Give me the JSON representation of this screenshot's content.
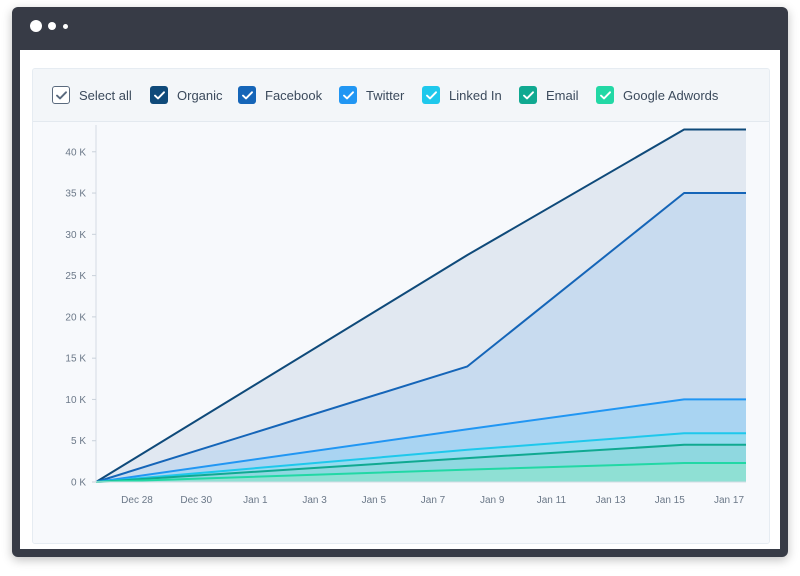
{
  "filters": [
    {
      "label": "Select all",
      "color": "#ffffff",
      "style": "outline",
      "checked": true
    },
    {
      "label": "Organic",
      "color": "#0f4a7a",
      "checked": true
    },
    {
      "label": "Facebook",
      "color": "#1565b8",
      "checked": true
    },
    {
      "label": "Twitter",
      "color": "#2196f3",
      "checked": true
    },
    {
      "label": "Linked In",
      "color": "#1ec8ec",
      "checked": true
    },
    {
      "label": "Email",
      "color": "#10a991",
      "checked": true
    },
    {
      "label": "Google Adwords",
      "color": "#22d8a5",
      "checked": true
    }
  ],
  "chart_data": {
    "type": "area",
    "title": "",
    "xlabel": "",
    "ylabel": "",
    "x": [
      "Dec 27",
      "Jan 8",
      "Jan 15",
      "Jan 17"
    ],
    "x_ticks": [
      "Dec 28",
      "Dec 30",
      "Jan 1",
      "Jan 3",
      "Jan 5",
      "Jan 7",
      "Jan 9",
      "Jan 11",
      "Jan 13",
      "Jan 15",
      "Jan 17"
    ],
    "y_ticks": [
      "0 K",
      "5 K",
      "10 K",
      "15 K",
      "20 K",
      "25 K",
      "30 K",
      "35 K",
      "40 K"
    ],
    "ylim": [
      0,
      43000
    ],
    "grid": false,
    "legend": "top",
    "series": [
      {
        "name": "Organic",
        "color": "#0f4a7a",
        "values": [
          0,
          27500,
          42700,
          42700
        ]
      },
      {
        "name": "Facebook",
        "color": "#1565b8",
        "values": [
          0,
          14000,
          35000,
          35000
        ]
      },
      {
        "name": "Twitter",
        "color": "#2196f3",
        "values": [
          0,
          6400,
          10000,
          10000
        ]
      },
      {
        "name": "Linked In",
        "color": "#1ec8ec",
        "values": [
          0,
          3900,
          5900,
          5900
        ]
      },
      {
        "name": "Email",
        "color": "#10a991",
        "values": [
          0,
          2900,
          4500,
          4500
        ]
      },
      {
        "name": "Google Adwords",
        "color": "#22d8a5",
        "values": [
          0,
          1500,
          2300,
          2300
        ]
      }
    ]
  }
}
